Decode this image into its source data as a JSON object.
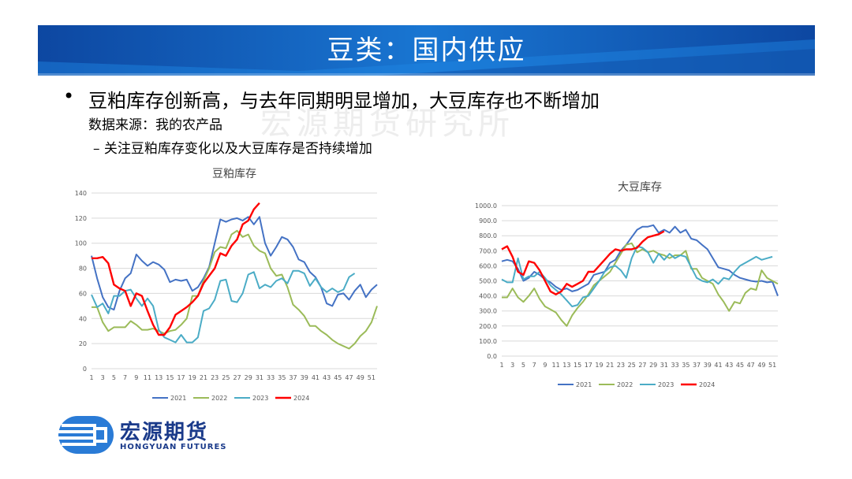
{
  "slide": {
    "title": "豆类：国内供应",
    "bullet": "•",
    "main_point": "豆粕库存创新高，与去年同期明显增加，大豆库存也不断增加",
    "source": "数据来源：我的农产品",
    "sub_point": "– 关注豆粕库存变化以及大豆库存是否持续增加",
    "watermark": "宏源期货研究所",
    "banner_color": "#1565c0"
  },
  "logo": {
    "cn": "宏源期货",
    "en": "HONGYUAN FUTURES",
    "color": "#1a3a8a"
  },
  "chart_data": [
    {
      "type": "line",
      "title": "豆粕库存",
      "ylim": [
        0,
        140
      ],
      "yticks": [
        0,
        20,
        40,
        60,
        80,
        100,
        120,
        140
      ],
      "ytick_labels": [
        "0",
        "20",
        "40",
        "60",
        "80",
        "100",
        "120",
        "140"
      ],
      "xlim": [
        1,
        52
      ],
      "xticks": [
        1,
        3,
        5,
        7,
        9,
        11,
        13,
        15,
        17,
        19,
        21,
        23,
        25,
        27,
        29,
        31,
        33,
        35,
        37,
        39,
        41,
        43,
        45,
        47,
        49,
        51
      ],
      "legend_position": "bottom",
      "series": [
        {
          "name": "2021",
          "color": "#4472c4",
          "x": [
            1,
            2,
            3,
            4,
            5,
            6,
            7,
            8,
            9,
            10,
            11,
            12,
            13,
            14,
            15,
            16,
            17,
            18,
            19,
            20,
            21,
            22,
            23,
            24,
            25,
            26,
            27,
            28,
            29,
            30,
            31,
            32,
            33,
            34,
            35,
            36,
            37,
            38,
            39,
            40,
            41,
            42,
            43,
            44,
            45,
            46,
            47,
            48,
            49,
            50,
            51,
            52
          ],
          "values": [
            90,
            72,
            57,
            49,
            47,
            62,
            72,
            76,
            91,
            86,
            82,
            85,
            83,
            79,
            69,
            71,
            70,
            71,
            62,
            65,
            72,
            81,
            100,
            119,
            117,
            119,
            120,
            118,
            121,
            115,
            121,
            100,
            90,
            97,
            105,
            103,
            97,
            87,
            85,
            77,
            73,
            65,
            52,
            50,
            59,
            60,
            55,
            62,
            67,
            57,
            63,
            67
          ]
        },
        {
          "name": "2022",
          "color": "#9bbb59",
          "x": [
            1,
            2,
            3,
            4,
            5,
            6,
            7,
            8,
            9,
            10,
            11,
            12,
            13,
            14,
            15,
            16,
            17,
            18,
            19,
            20,
            21,
            22,
            23,
            24,
            25,
            26,
            27,
            28,
            29,
            30,
            31,
            32,
            33,
            34,
            35,
            36,
            37,
            38,
            39,
            40,
            41,
            42,
            43,
            44,
            45,
            46,
            47,
            48,
            49,
            50,
            51,
            52
          ],
          "values": [
            49,
            49,
            37,
            30,
            33,
            33,
            33,
            38,
            35,
            31,
            31,
            32,
            30,
            28,
            30,
            31,
            35,
            40,
            58,
            58,
            70,
            80,
            93,
            97,
            96,
            107,
            110,
            105,
            107,
            98,
            94,
            92,
            80,
            74,
            75,
            65,
            51,
            47,
            42,
            34,
            34,
            30,
            27,
            23,
            20,
            18,
            16,
            20,
            26,
            30,
            37,
            50
          ]
        },
        {
          "name": "2023",
          "color": "#4bacc6",
          "x": [
            1,
            2,
            3,
            4,
            5,
            6,
            7,
            8,
            9,
            10,
            11,
            12,
            13,
            14,
            15,
            16,
            17,
            18,
            19,
            20,
            21,
            22,
            23,
            24,
            25,
            26,
            27,
            28,
            29,
            30,
            31,
            32,
            33,
            34,
            35,
            36,
            37,
            38,
            39,
            40,
            41,
            42,
            43,
            44,
            45,
            46,
            47,
            48
          ],
          "values": [
            59,
            49,
            52,
            44,
            58,
            58,
            62,
            63,
            56,
            50,
            56,
            50,
            31,
            25,
            23,
            21,
            27,
            21,
            21,
            25,
            46,
            48,
            55,
            70,
            71,
            54,
            53,
            60,
            75,
            77,
            64,
            67,
            65,
            70,
            72,
            68,
            78,
            78,
            76,
            66,
            72,
            65,
            61,
            64,
            61,
            63,
            73,
            76
          ]
        },
        {
          "name": "2024",
          "color": "#ff0000",
          "x": [
            1,
            2,
            3,
            4,
            5,
            6,
            7,
            8,
            9,
            10,
            11,
            12,
            13,
            14,
            15,
            16,
            17,
            18,
            19,
            20,
            21,
            22,
            23,
            24,
            25,
            26,
            27,
            28,
            29,
            30,
            31
          ],
          "values": [
            88,
            88,
            89,
            84,
            67,
            64,
            62,
            50,
            60,
            58,
            46,
            35,
            27,
            27,
            33,
            43,
            46,
            49,
            53,
            58,
            68,
            74,
            80,
            92,
            90,
            98,
            103,
            115,
            118,
            127,
            132
          ]
        }
      ]
    },
    {
      "type": "line",
      "title": "大豆库存",
      "ylim": [
        0,
        1000
      ],
      "yticks": [
        0,
        100,
        200,
        300,
        400,
        500,
        600,
        700,
        800,
        900,
        1000
      ],
      "ytick_labels": [
        "0.0",
        "100.0",
        "200.0",
        "300.0",
        "400.0",
        "500.0",
        "600.0",
        "700.0",
        "800.0",
        "900.0",
        "1000.0"
      ],
      "xlim": [
        1,
        52
      ],
      "xticks": [
        1,
        3,
        5,
        7,
        9,
        11,
        13,
        15,
        17,
        19,
        21,
        23,
        25,
        27,
        29,
        31,
        33,
        35,
        37,
        39,
        41,
        43,
        45,
        47,
        49,
        51
      ],
      "legend_position": "bottom",
      "series": [
        {
          "name": "2021",
          "color": "#4472c4",
          "x": [
            1,
            2,
            3,
            4,
            5,
            6,
            7,
            8,
            9,
            10,
            11,
            12,
            13,
            14,
            15,
            16,
            17,
            18,
            19,
            20,
            21,
            22,
            23,
            24,
            25,
            26,
            27,
            28,
            29,
            30,
            31,
            32,
            33,
            34,
            35,
            36,
            37,
            38,
            39,
            40,
            41,
            42,
            43,
            44,
            45,
            46,
            47,
            48,
            49,
            50,
            51,
            52
          ],
          "values": [
            630,
            640,
            630,
            580,
            500,
            520,
            560,
            540,
            510,
            490,
            460,
            440,
            450,
            430,
            440,
            460,
            480,
            540,
            550,
            560,
            620,
            640,
            700,
            740,
            790,
            840,
            860,
            860,
            870,
            820,
            840,
            820,
            860,
            820,
            840,
            780,
            770,
            740,
            710,
            650,
            590,
            580,
            570,
            540,
            520,
            510,
            500,
            495,
            500,
            490,
            495,
            400
          ]
        },
        {
          "name": "2022",
          "color": "#9bbb59",
          "x": [
            1,
            2,
            3,
            4,
            5,
            6,
            7,
            8,
            9,
            10,
            11,
            12,
            13,
            14,
            15,
            16,
            17,
            18,
            19,
            20,
            21,
            22,
            23,
            24,
            25,
            26,
            27,
            28,
            29,
            30,
            31,
            32,
            33,
            34,
            35,
            36,
            37,
            38,
            39,
            40,
            41,
            42,
            43,
            44,
            45,
            46,
            47,
            48,
            49,
            50,
            51,
            52
          ],
          "values": [
            390,
            390,
            450,
            390,
            360,
            400,
            450,
            380,
            330,
            310,
            290,
            240,
            200,
            270,
            320,
            360,
            410,
            470,
            500,
            530,
            560,
            620,
            680,
            740,
            750,
            690,
            710,
            690,
            700,
            680,
            670,
            650,
            670,
            670,
            700,
            580,
            580,
            520,
            500,
            480,
            410,
            360,
            300,
            360,
            350,
            420,
            450,
            440,
            570,
            520,
            500,
            480
          ]
        },
        {
          "name": "2023",
          "color": "#4bacc6",
          "x": [
            1,
            2,
            3,
            4,
            5,
            6,
            7,
            8,
            9,
            10,
            11,
            12,
            13,
            14,
            15,
            16,
            17,
            18,
            19,
            20,
            21,
            22,
            23,
            24,
            25,
            26,
            27,
            28,
            29,
            30,
            31,
            32,
            33,
            34,
            35,
            36,
            37,
            38,
            39,
            40,
            41,
            42,
            43,
            44,
            45,
            46,
            47,
            48,
            49,
            50,
            51
          ],
          "values": [
            510,
            490,
            490,
            650,
            510,
            530,
            530,
            560,
            520,
            470,
            440,
            410,
            370,
            330,
            340,
            390,
            400,
            450,
            500,
            560,
            590,
            600,
            570,
            520,
            650,
            730,
            720,
            690,
            620,
            680,
            640,
            680,
            650,
            670,
            660,
            590,
            520,
            500,
            490,
            510,
            480,
            520,
            510,
            560,
            600,
            620,
            640,
            660,
            640,
            650,
            660
          ]
        },
        {
          "name": "2024",
          "color": "#ff0000",
          "x": [
            1,
            2,
            3,
            4,
            5,
            6,
            7,
            8,
            9,
            10,
            11,
            12,
            13,
            14,
            15,
            16,
            17,
            18,
            19,
            20,
            21,
            22,
            23,
            24,
            25,
            26,
            27,
            28,
            29,
            30,
            31
          ],
          "values": [
            710,
            730,
            660,
            560,
            540,
            630,
            620,
            570,
            500,
            430,
            410,
            430,
            480,
            460,
            480,
            500,
            560,
            560,
            600,
            640,
            680,
            710,
            700,
            710,
            710,
            720,
            760,
            790,
            800,
            810,
            830
          ]
        }
      ]
    }
  ]
}
